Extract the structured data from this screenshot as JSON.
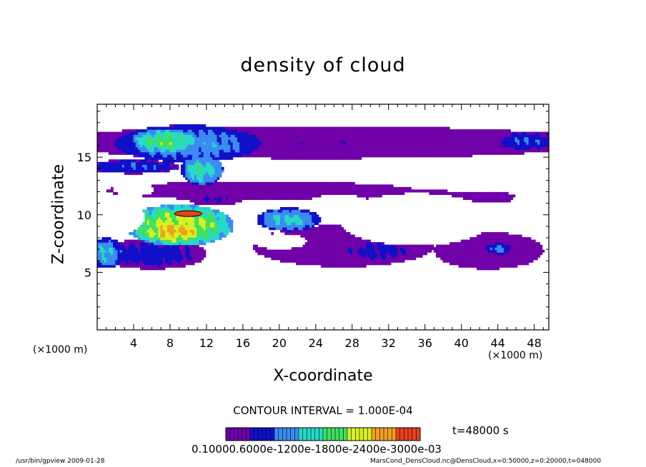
{
  "chart_data": {
    "type": "heatmap",
    "title": "density of cloud",
    "xlabel": "X-coordinate",
    "ylabel": "Z-coordinate",
    "x_unit_left": "(×1000 m)",
    "x_unit_right": "(×1000 m)",
    "xlim": [
      0,
      49.6
    ],
    "ylim": [
      0,
      19.6
    ],
    "xticks": [
      4,
      8,
      12,
      16,
      20,
      24,
      28,
      32,
      36,
      40,
      44,
      48
    ],
    "yticks": [
      5,
      10,
      15
    ],
    "contour_interval": "CONTOUR INTERVAL = 1.000E-04",
    "time": "t=48000 s",
    "colorbar_labels": "0.10000.6000e-1200e-1800e-2400e-3000e-03",
    "blobs": [
      {
        "x": 24,
        "z": 16.3,
        "rx": 31,
        "rz": 1.4,
        "v": 0.12
      },
      {
        "x": 10,
        "z": 16.2,
        "rx": 8,
        "rz": 1.6,
        "v": 0.28
      },
      {
        "x": 7.5,
        "z": 16.4,
        "rx": 3.8,
        "rz": 1.1,
        "v": 0.42
      },
      {
        "x": 11.5,
        "z": 13.9,
        "rx": 2.3,
        "rz": 1.3,
        "v": 0.36
      },
      {
        "x": 4,
        "z": 14.2,
        "rx": 5,
        "rz": 0.6,
        "v": 0.22
      },
      {
        "x": 47,
        "z": 16.4,
        "rx": 3,
        "rz": 0.8,
        "v": 0.22
      },
      {
        "x": 18,
        "z": 12.1,
        "rx": 17,
        "rz": 0.8,
        "v": 0.08
      },
      {
        "x": 9,
        "z": 9.1,
        "rx": 6,
        "rz": 1.8,
        "v": 0.5
      },
      {
        "x": 8.5,
        "z": 8.6,
        "rx": 3.6,
        "rz": 1.0,
        "v": 0.62
      },
      {
        "x": 6,
        "z": 6.6,
        "rx": 6,
        "rz": 1.3,
        "v": 0.18
      },
      {
        "x": 1,
        "z": 6.7,
        "rx": 2,
        "rz": 1.3,
        "v": 0.3
      },
      {
        "x": 13,
        "z": 11.4,
        "rx": 3,
        "rz": 0.6,
        "v": 0.14
      },
      {
        "x": 21,
        "z": 9.6,
        "rx": 3.5,
        "rz": 1.0,
        "v": 0.32
      },
      {
        "x": 27,
        "z": 7.3,
        "rx": 10,
        "rz": 1.8,
        "v": 0.08
      },
      {
        "x": 31,
        "z": 6.9,
        "rx": 5,
        "rz": 1.1,
        "v": 0.16
      },
      {
        "x": 43,
        "z": 6.9,
        "rx": 6,
        "rz": 1.6,
        "v": 0.1
      },
      {
        "x": 44,
        "z": 7.1,
        "rx": 1.5,
        "rz": 0.5,
        "v": 0.24
      },
      {
        "x": 36,
        "z": 11.3,
        "rx": 13,
        "rz": 0.8,
        "v": 0.08
      }
    ],
    "holes": [
      {
        "x": 35,
        "z": 9.6,
        "rx": 8.5,
        "rz": 2.3
      },
      {
        "x": 26.5,
        "z": 11.0,
        "rx": 3.5,
        "rz": 0.8
      },
      {
        "x": 43.5,
        "z": 10.2,
        "rx": 3.4,
        "rz": 1.0
      },
      {
        "x": 20,
        "z": 7.7,
        "rx": 3,
        "rz": 0.7
      },
      {
        "x": 15,
        "z": 5.6,
        "rx": 2.5,
        "rz": 0.4
      },
      {
        "x": 3,
        "z": 9.8,
        "rx": 2.2,
        "rz": 1.3
      },
      {
        "x": 4,
        "z": 12.2,
        "rx": 2.2,
        "rz": 0.6
      },
      {
        "x": 47.5,
        "z": 10.5,
        "rx": 2.2,
        "rz": 1.8
      }
    ],
    "peak": {
      "x": 10,
      "z": 10.1,
      "rx": 1.5,
      "rz": 0.25
    },
    "cloud_zmin": 4.8,
    "cloud_zmax": 17.9
  },
  "footer": {
    "left": "/usr/bin/gpview   2009-01-28",
    "right": "MarsCond_DensCloud.nc@DensCloud,x=0:50000,z=0:20000,t=048000"
  },
  "colors": {
    "colormap": [
      "#ffffff",
      "#7000a8",
      "#1010c8",
      "#3a8cf0",
      "#28d8c8",
      "#40e060",
      "#d8f020",
      "#f0a020",
      "#e84020"
    ],
    "frame": "#000000"
  }
}
